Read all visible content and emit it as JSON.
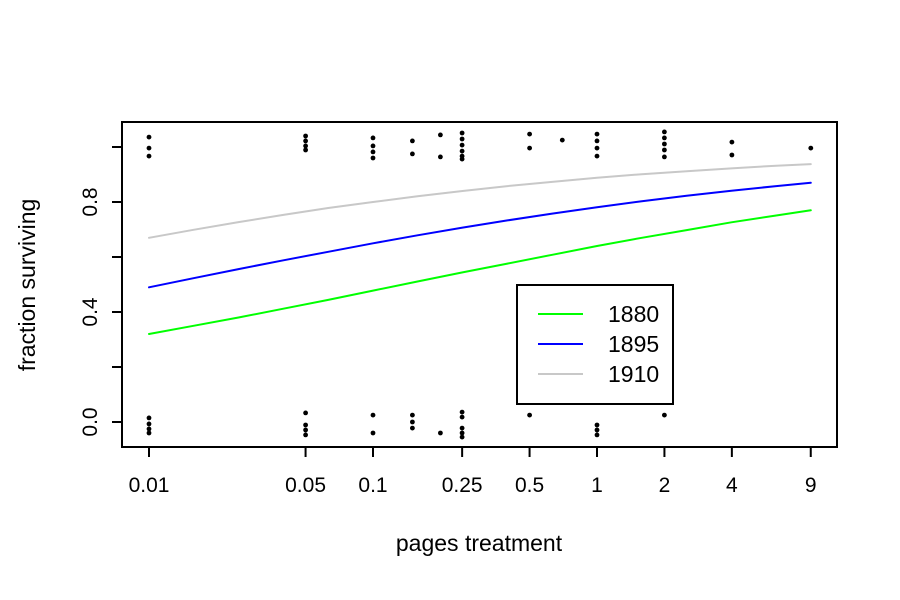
{
  "figure": {
    "background": "#FFFFFF"
  },
  "chart_data": {
    "type": "line+scatter",
    "title": "",
    "xlabel": "pages treatment",
    "ylabel": "fraction surviving",
    "x_scale": "log10",
    "xlim": [
      0.0076,
      11.8
    ],
    "ylim": [
      -0.09,
      1.09
    ],
    "grid": false,
    "x_ticks": {
      "values": [
        0.01,
        0.05,
        0.1,
        0.25,
        0.5,
        1,
        2,
        4,
        9
      ],
      "labels": [
        "0.01",
        "0.05",
        "0.1",
        "0.25",
        "0.5",
        "1",
        "2",
        "4",
        "9"
      ]
    },
    "y_ticks": {
      "values": [
        0.0,
        0.2,
        0.4,
        0.6,
        0.8,
        1.0
      ],
      "labels": [
        "0.0",
        "",
        "0.4",
        "",
        "0.8",
        ""
      ]
    },
    "axis_color": "#000000",
    "scatter_color": "#000000",
    "x_curve": [
      0.01,
      0.0158,
      0.0251,
      0.0398,
      0.0631,
      0.1,
      0.158,
      0.251,
      0.398,
      0.631,
      1,
      1.585,
      2.512,
      3.981,
      6.31,
      9
    ],
    "series": [
      {
        "name": "1880",
        "color": "#00FF00",
        "values": [
          0.32,
          0.35,
          0.38,
          0.412,
          0.444,
          0.478,
          0.511,
          0.544,
          0.576,
          0.608,
          0.64,
          0.67,
          0.698,
          0.726,
          0.751,
          0.77
        ]
      },
      {
        "name": "1895",
        "color": "#0000FF",
        "values": [
          0.49,
          0.523,
          0.556,
          0.588,
          0.619,
          0.65,
          0.679,
          0.707,
          0.733,
          0.758,
          0.781,
          0.803,
          0.823,
          0.841,
          0.858,
          0.87
        ]
      },
      {
        "name": "1910",
        "color": "#C8C8C8",
        "values": [
          0.67,
          0.699,
          0.727,
          0.753,
          0.778,
          0.8,
          0.821,
          0.84,
          0.858,
          0.873,
          0.888,
          0.901,
          0.912,
          0.922,
          0.932,
          0.938
        ]
      }
    ],
    "legend": {
      "position": "center-right",
      "entries": [
        {
          "label": "1880",
          "color": "#00FF00"
        },
        {
          "label": "1895",
          "color": "#0000FF"
        },
        {
          "label": "1910",
          "color": "#C8C8C8"
        }
      ]
    },
    "scatter_points": [
      [
        0.01,
        1.036
      ],
      [
        0.01,
        0.996
      ],
      [
        0.01,
        0.967
      ],
      [
        0.01,
        0.015
      ],
      [
        0.01,
        -0.007
      ],
      [
        0.01,
        -0.025
      ],
      [
        0.01,
        -0.04
      ],
      [
        0.05,
        1.04
      ],
      [
        0.05,
        1.022
      ],
      [
        0.05,
        1.004
      ],
      [
        0.05,
        0.989
      ],
      [
        0.05,
        0.033
      ],
      [
        0.05,
        -0.011
      ],
      [
        0.05,
        -0.029
      ],
      [
        0.05,
        -0.047
      ],
      [
        0.1,
        1.033
      ],
      [
        0.1,
        1.004
      ],
      [
        0.1,
        0.982
      ],
      [
        0.1,
        0.96
      ],
      [
        0.1,
        0.025
      ],
      [
        0.1,
        -0.04
      ],
      [
        0.15,
        1.022
      ],
      [
        0.15,
        0.975
      ],
      [
        0.15,
        0.025
      ],
      [
        0.15,
        0.0
      ],
      [
        0.15,
        -0.022
      ],
      [
        0.2,
        1.044
      ],
      [
        0.2,
        0.964
      ],
      [
        0.2,
        -0.04
      ],
      [
        0.25,
        1.051
      ],
      [
        0.25,
        1.029
      ],
      [
        0.25,
        1.007
      ],
      [
        0.25,
        0.985
      ],
      [
        0.25,
        0.967
      ],
      [
        0.25,
        0.956
      ],
      [
        0.25,
        0.036
      ],
      [
        0.25,
        0.018
      ],
      [
        0.25,
        -0.022
      ],
      [
        0.25,
        -0.04
      ],
      [
        0.25,
        -0.055
      ],
      [
        0.5,
        1.047
      ],
      [
        0.5,
        0.996
      ],
      [
        0.5,
        0.025
      ],
      [
        0.7,
        1.025
      ],
      [
        1,
        1.047
      ],
      [
        1,
        1.022
      ],
      [
        1,
        0.996
      ],
      [
        1,
        0.967
      ],
      [
        1,
        -0.011
      ],
      [
        1,
        -0.029
      ],
      [
        1,
        -0.047
      ],
      [
        2,
        1.055
      ],
      [
        2,
        1.033
      ],
      [
        2,
        1.011
      ],
      [
        2,
        0.989
      ],
      [
        2,
        0.964
      ],
      [
        2,
        0.025
      ],
      [
        4,
        1.018
      ],
      [
        4,
        0.971
      ],
      [
        9,
        0.996
      ]
    ]
  }
}
